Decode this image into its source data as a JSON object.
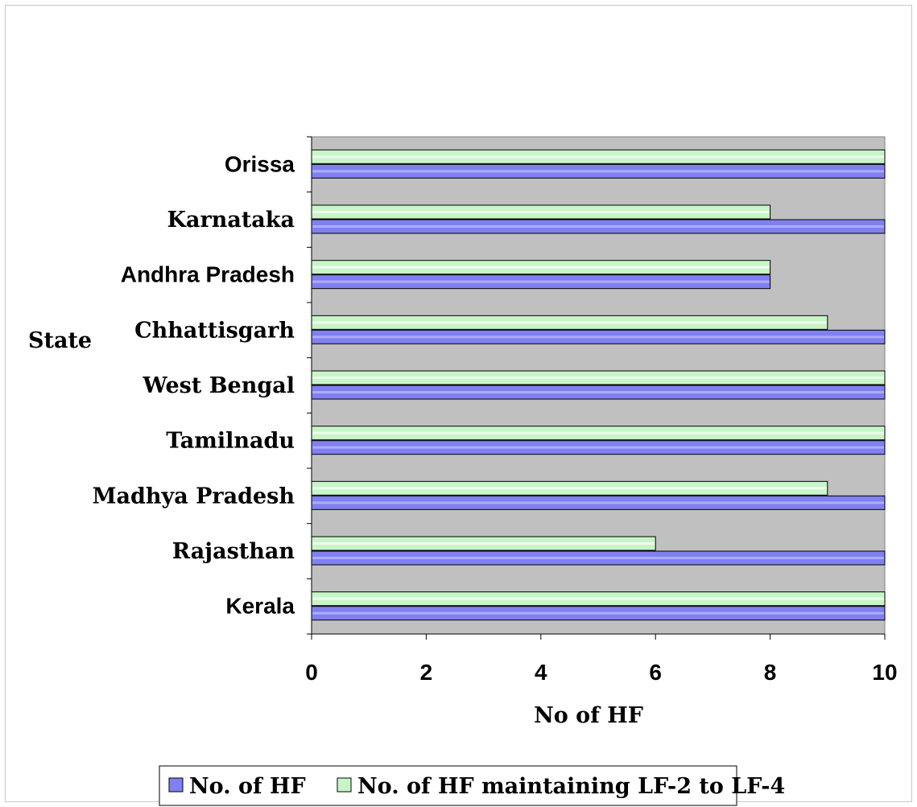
{
  "chart_data": {
    "type": "bar",
    "orientation": "horizontal",
    "categories": [
      "Kerala",
      "Rajasthan",
      "Madhya Pradesh",
      "Tamilnadu",
      "West Bengal",
      "Chhattisgarh",
      "Andhra Pradesh",
      "Karnataka",
      "Orissa"
    ],
    "series": [
      {
        "name": "No. of HF",
        "values": [
          10,
          10,
          10,
          10,
          10,
          10,
          8,
          10,
          10
        ],
        "color": "#8080f0"
      },
      {
        "name": "No. of HF maintaining LF-2 to LF-4",
        "values": [
          10,
          6,
          9,
          10,
          10,
          9,
          8,
          8,
          10
        ],
        "color": "#c8f5c8"
      }
    ],
    "xlabel": "No of HF",
    "ylabel": "State",
    "xlim": [
      0,
      10
    ],
    "xticks": [
      "0",
      "2",
      "4",
      "6",
      "8",
      "10"
    ],
    "plot_background": "#c0c0c0",
    "grid": false,
    "legend_position": "bottom"
  }
}
